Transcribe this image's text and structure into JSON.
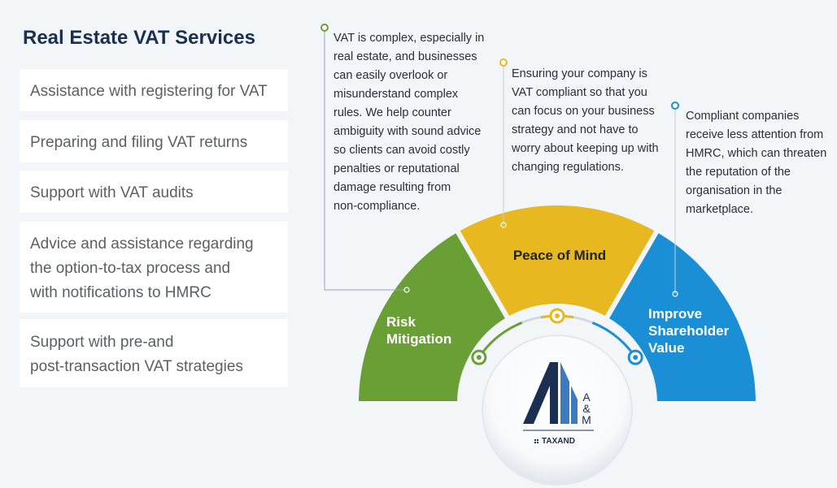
{
  "title": "Real Estate VAT Services",
  "services": [
    [
      "Assistance with registering for VAT"
    ],
    [
      "Preparing and filing VAT returns"
    ],
    [
      "Support with VAT audits"
    ],
    [
      "Advice and assistance regarding",
      "the option-to-tax process and",
      "with notifications to HMRC"
    ],
    [
      "Support with pre-and",
      "post-transaction VAT strategies"
    ]
  ],
  "segments": [
    {
      "label": [
        "Risk",
        "Mitigation"
      ],
      "color": "#6a9f35"
    },
    {
      "label": [
        "Peace of Mind"
      ],
      "color": "#e8b820"
    },
    {
      "label": [
        "Improve",
        "Shareholder",
        "Value"
      ],
      "color": "#1a8fd6"
    }
  ],
  "callouts": [
    [
      "VAT is complex, especially in",
      "real estate, and businesses",
      "can easily overlook or",
      "misunderstand complex",
      "rules. We help counter",
      "ambiguity with sound advice",
      "so clients can avoid costly",
      "penalties or reputational",
      "damage resulting from",
      "non-compliance."
    ],
    [
      "Ensuring your company is",
      "VAT compliant so that you",
      "can focus on your business",
      "strategy and not have to",
      "worry about keeping up with",
      "changing regulations."
    ],
    [
      "Compliant companies",
      "receive less attention from",
      "HMRC, which can threaten",
      "the reputation of the",
      "organisation in the",
      "marketplace."
    ]
  ],
  "logo": {
    "letters": [
      "A",
      "&",
      "M"
    ],
    "tagline": "TAXAND"
  }
}
